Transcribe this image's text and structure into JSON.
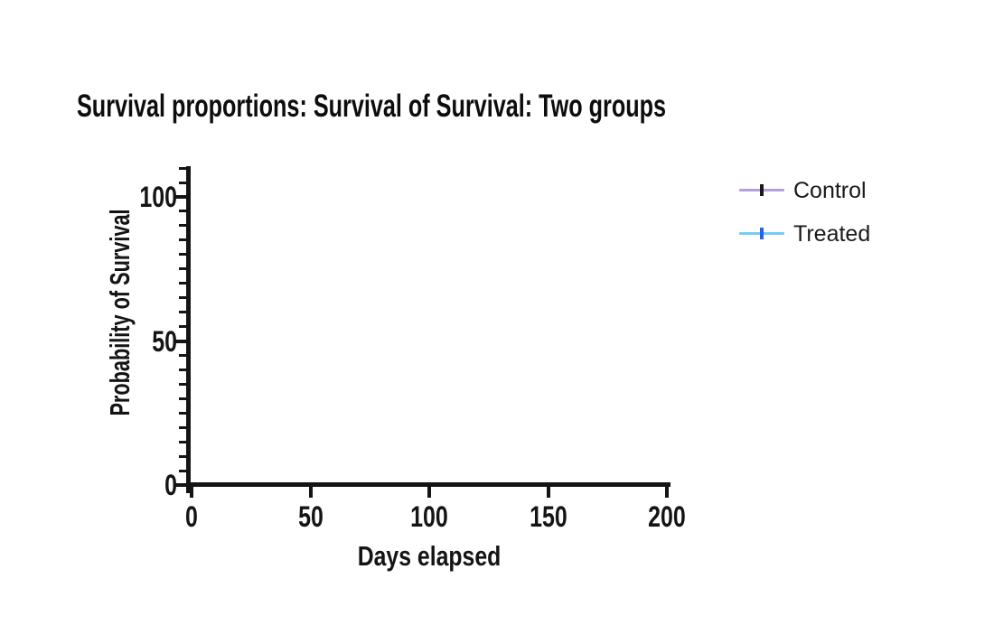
{
  "chart": {
    "title": "Survival proportions: Survival of Survival: Two groups",
    "x_axis": {
      "label": "Days elapsed"
    },
    "y_axis": {
      "label": "Probability of Survival"
    },
    "legend": [
      {
        "label": "Control",
        "line_color": "#b1a0db",
        "tick_color": "#1a1a1a"
      },
      {
        "label": "Treated",
        "line_color": "#76ccf8",
        "tick_color": "#2862f0"
      }
    ],
    "axis_color": "#141414",
    "background_color": "#ffffff"
  },
  "chart_data": {
    "type": "line",
    "title": "Survival proportions: Survival of Survival: Two groups",
    "xlabel": "Days elapsed",
    "ylabel": "Probability of Survival",
    "xlim": [
      0,
      200
    ],
    "ylim": [
      0,
      110
    ],
    "x_ticks": [
      0,
      50,
      100,
      150,
      200
    ],
    "y_major_ticks": [
      0,
      50,
      100
    ],
    "y_minor_tick_step": 5,
    "grid": false,
    "legend_position": "right",
    "series": [
      {
        "name": "Control",
        "color": "#b1a0db",
        "x": [],
        "y": []
      },
      {
        "name": "Treated",
        "color": "#76ccf8",
        "x": [],
        "y": []
      }
    ]
  }
}
